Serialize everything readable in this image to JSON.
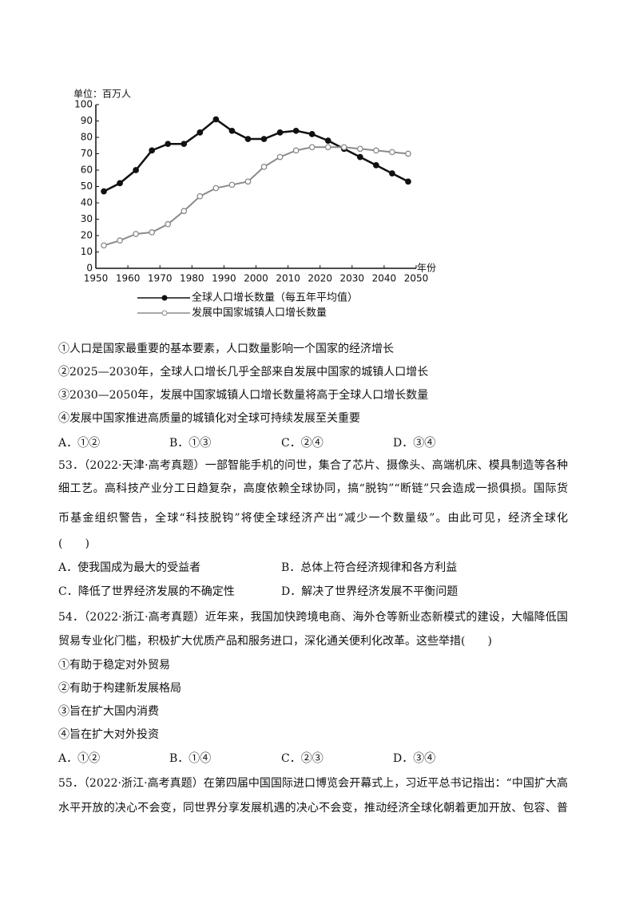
{
  "chart_data": {
    "type": "line",
    "y_label": "单位：百万人",
    "x_label": "年份",
    "x": [
      1952.5,
      1957.5,
      1962.5,
      1967.5,
      1972.5,
      1977.5,
      1982.5,
      1987.5,
      1992.5,
      1997.5,
      2002.5,
      2007.5,
      2012.5,
      2017.5,
      2022.5,
      2027.5,
      2032.5,
      2037.5,
      2042.5,
      2047.5
    ],
    "series": [
      {
        "name": "全球人口增长数量（每五年平均值）",
        "color": "#111111",
        "marker": "filled",
        "values": [
          47,
          52,
          60,
          72,
          76,
          76,
          83,
          91,
          84,
          79,
          79,
          83,
          84,
          82,
          78,
          73,
          68,
          63,
          58,
          53
        ]
      },
      {
        "name": "发展中国家城镇人口增长数量",
        "color": "#8a8a8a",
        "marker": "hollow",
        "values": [
          14,
          17,
          21,
          22,
          27,
          35,
          44,
          49,
          51,
          53,
          62,
          68,
          72,
          74,
          74,
          74,
          73,
          72,
          71,
          70
        ]
      }
    ],
    "xlim": [
      1950,
      2050
    ],
    "xticks": [
      1950,
      1960,
      1970,
      1980,
      1990,
      2000,
      2010,
      2020,
      2030,
      2040,
      2050
    ],
    "ylim": [
      0,
      100
    ],
    "yticks": [
      0,
      10,
      20,
      30,
      40,
      50,
      60,
      70,
      80,
      90,
      100
    ]
  },
  "q52": {
    "statements": [
      "①人口是国家最重要的基本要素，人口数量影响一个国家的经济增长",
      "②2025—2030年，全球人口增长几乎全部来自发展中国家的城镇人口增长",
      "③2030—2050年，发展中国家城镇人口增长数量将高于全球人口增长数量",
      "④发展中国家推进高质量的城镇化对全球可持续发展至关重要"
    ],
    "options": [
      "A．①②",
      "B．①③",
      "C．②④",
      "D．③④"
    ]
  },
  "q53": {
    "lines": [
      "53．（2022·天津·高考真题）一部智能手机的问世，集合了芯片、摄像头、高端机床、模具制造等各种精",
      "细工艺。高科技产业分工日趋复杂，高度依赖全球协同，搞“脱钩”“断链”只会造成一损俱损。国际货",
      "币基金组织警告，全球“科技脱钩”将使全球经济产出“减少一个数量级”。由此可见，经济全球化",
      "(　　)"
    ],
    "options": [
      "A．使我国成为最大的受益者",
      "B．总体上符合经济规律和各方利益",
      "C．降低了世界经济发展的不确定性",
      "D．解决了世界经济发展不平衡问题"
    ]
  },
  "q54": {
    "lines": [
      "54．（2022·浙江·高考真题）近年来，我国加快跨境电商、海外仓等新业态新模式的建设，大幅降低国际",
      "贸易专业化门槛，积极扩大优质产品和服务进口，深化通关便利化改革。这些举措(　　)"
    ],
    "statements": [
      "①有助于稳定对外贸易",
      "②有助于构建新发展格局",
      "③旨在扩大国内消费",
      "④旨在扩大对外投资"
    ],
    "options": [
      "A．①②",
      "B．①④",
      "C．②③",
      "D．③④"
    ]
  },
  "q55": {
    "lines": [
      "55．（2022·浙江·高考真题）在第四届中国国际进口博览会开幕式上，习近平总书记指出：“中国扩大高",
      "水平开放的决心不会变，同世界分享发展机遇的决心不会变，推动经济全球化朝着更加开放、包容、普"
    ]
  }
}
